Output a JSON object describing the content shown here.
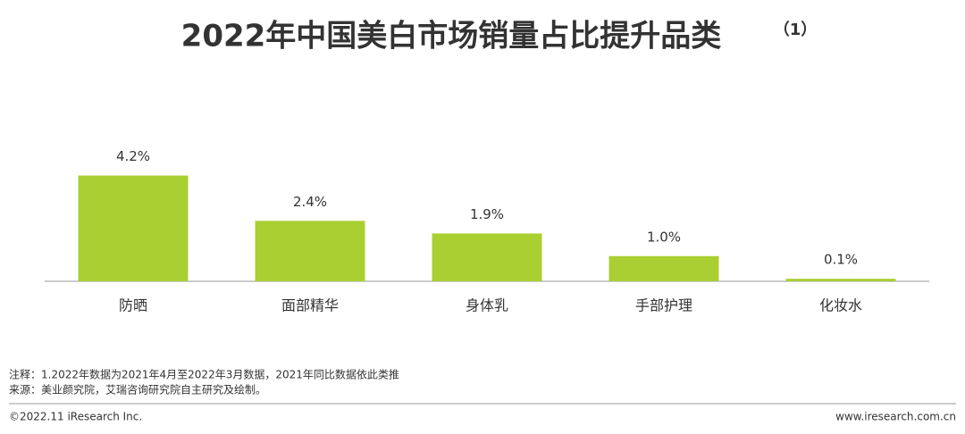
{
  "chart_data": {
    "type": "bar",
    "title": "2022年中国美白市场销量占比提升品类",
    "title_note": "（1）",
    "categories": [
      "防晒",
      "面部精华",
      "身体乳",
      "手部护理",
      "化妆水"
    ],
    "values": [
      4.2,
      2.4,
      1.9,
      1.0,
      0.1
    ],
    "value_labels": [
      "4.2%",
      "2.4%",
      "1.9%",
      "1.0%",
      "0.1%"
    ],
    "color": "#aacf33"
  },
  "notes": [
    "注释：1.2022年数据为2021年4月至2022年3月数据，2021年同比数据依此类推",
    "来源：美业颜究院，艾瑞咨询研究院自主研究及绘制。"
  ],
  "footer": {
    "left": "©2022.11 iResearch Inc.",
    "right": "www.iresearch.com.cn"
  }
}
